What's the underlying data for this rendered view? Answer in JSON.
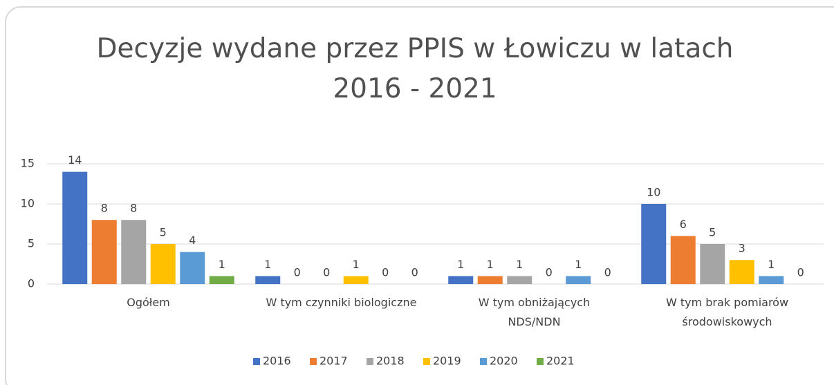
{
  "chart_data": {
    "type": "bar",
    "title": "Decyzje wydane przez PPIS w Łowiczu w latach\n2016 - 2021",
    "categories": [
      "Ogółem",
      "W tym czynniki biologiczne",
      "W tym obniżających\nNDS/NDN",
      "W tym brak pomiarów\nśrodowiskowych"
    ],
    "series": [
      {
        "name": "2016",
        "color": "#4472c4",
        "values": [
          14,
          1,
          1,
          10
        ]
      },
      {
        "name": "2017",
        "color": "#ed7d31",
        "values": [
          8,
          0,
          1,
          6
        ]
      },
      {
        "name": "2018",
        "color": "#a5a5a5",
        "values": [
          8,
          0,
          1,
          5
        ]
      },
      {
        "name": "2019",
        "color": "#ffc000",
        "values": [
          5,
          1,
          0,
          3
        ]
      },
      {
        "name": "2020",
        "color": "#5b9bd5",
        "values": [
          4,
          0,
          1,
          1
        ]
      },
      {
        "name": "2021",
        "color": "#70ad47",
        "values": [
          1,
          0,
          0,
          0
        ]
      }
    ],
    "ylim": [
      0,
      15
    ],
    "yticks": [
      0,
      5,
      10,
      15
    ],
    "grid": true,
    "legend": "bottom"
  }
}
